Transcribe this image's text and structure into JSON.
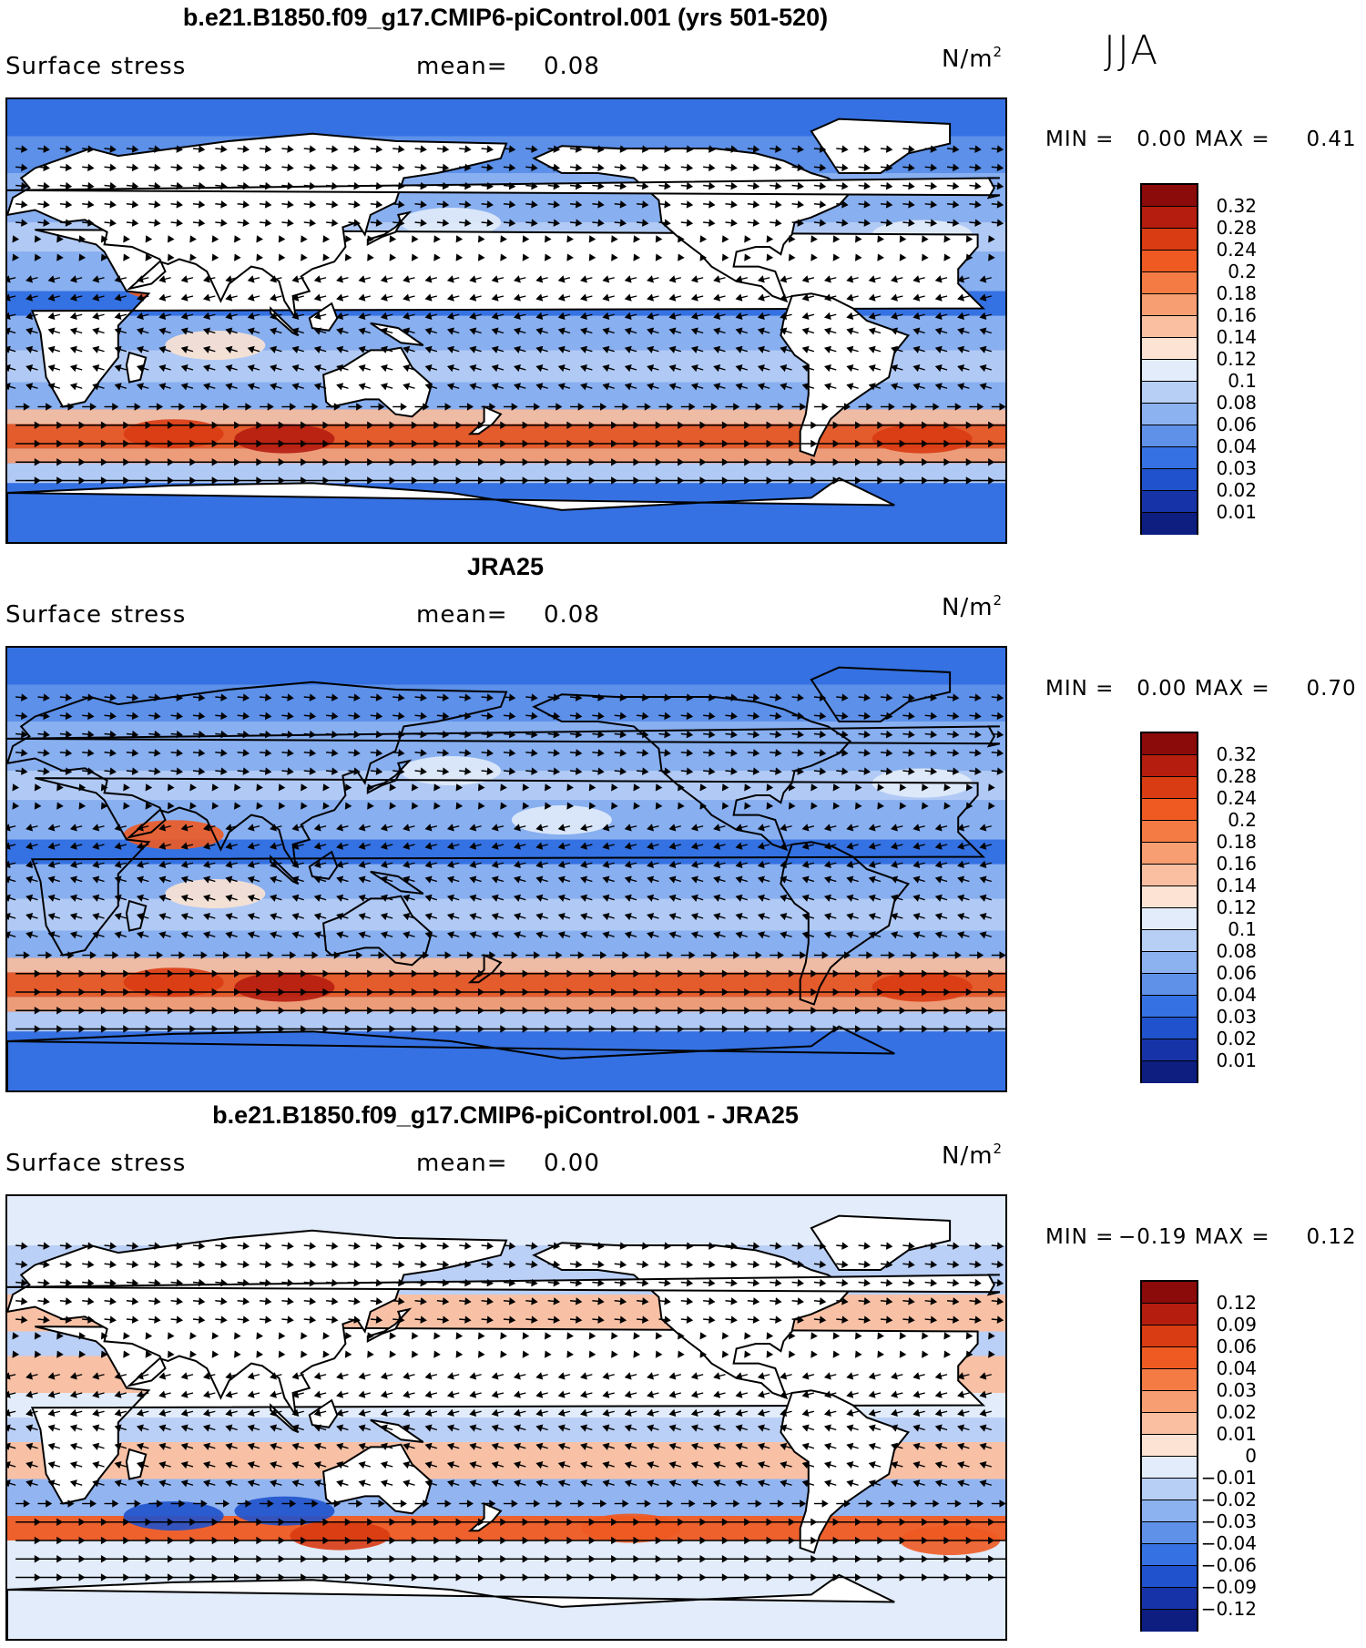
{
  "season": "JJA",
  "panels": [
    {
      "title": "b.e21.B1850.f09_g17.CMIP6-piControl.001 (yrs 501-520)",
      "variable": "Surface stress",
      "mean_label": "mean=",
      "mean_value": "0.08",
      "units": "N/m",
      "units_sup": "2",
      "min_label": "MIN =",
      "min_value": "0.00",
      "max_label": "MAX =",
      "max_value": "0.41",
      "levels": [
        "0.32",
        "0.28",
        "0.24",
        "0.2",
        "0.18",
        "0.16",
        "0.14",
        "0.12",
        "0.1",
        "0.08",
        "0.06",
        "0.04",
        "0.03",
        "0.02",
        "0.01"
      ],
      "colors": [
        "#8b0a0a",
        "#b51d0e",
        "#d93b12",
        "#ee5a22",
        "#f57b45",
        "#f79e72",
        "#f9bfa0",
        "#fce3d3",
        "#e2ecfa",
        "#b8cff5",
        "#8db2f0",
        "#5f91e9",
        "#3571e2",
        "#1f52cc",
        "#1634a8",
        "#0d1d80"
      ]
    },
    {
      "title": "JRA25",
      "variable": "Surface stress",
      "mean_label": "mean=",
      "mean_value": "0.08",
      "units": "N/m",
      "units_sup": "2",
      "min_label": "MIN =",
      "min_value": "0.00",
      "max_label": "MAX =",
      "max_value": "0.70",
      "levels": [
        "0.32",
        "0.28",
        "0.24",
        "0.2",
        "0.18",
        "0.16",
        "0.14",
        "0.12",
        "0.1",
        "0.08",
        "0.06",
        "0.04",
        "0.03",
        "0.02",
        "0.01"
      ],
      "colors": [
        "#8b0a0a",
        "#b51d0e",
        "#d93b12",
        "#ee5a22",
        "#f57b45",
        "#f79e72",
        "#f9bfa0",
        "#fce3d3",
        "#e2ecfa",
        "#b8cff5",
        "#8db2f0",
        "#5f91e9",
        "#3571e2",
        "#1f52cc",
        "#1634a8",
        "#0d1d80"
      ]
    },
    {
      "title": "b.e21.B1850.f09_g17.CMIP6-piControl.001 - JRA25",
      "variable": "Surface stress",
      "mean_label": "mean=",
      "mean_value": "0.00",
      "units": "N/m",
      "units_sup": "2",
      "min_label": "MIN =",
      "min_value": "−0.19",
      "max_label": "MAX =",
      "max_value": "0.12",
      "levels": [
        "0.12",
        "0.09",
        "0.06",
        "0.04",
        "0.03",
        "0.02",
        "0.01",
        "0",
        "−0.01",
        "−0.02",
        "−0.03",
        "−0.04",
        "−0.06",
        "−0.09",
        "−0.12"
      ],
      "colors": [
        "#8b0a0a",
        "#b51d0e",
        "#d93b12",
        "#ee5a22",
        "#f57b45",
        "#f79e72",
        "#f9bfa0",
        "#fce3d3",
        "#e2ecfa",
        "#b8cff5",
        "#8db2f0",
        "#5f91e9",
        "#3571e2",
        "#1f52cc",
        "#1634a8",
        "#0d1d80"
      ]
    }
  ]
}
